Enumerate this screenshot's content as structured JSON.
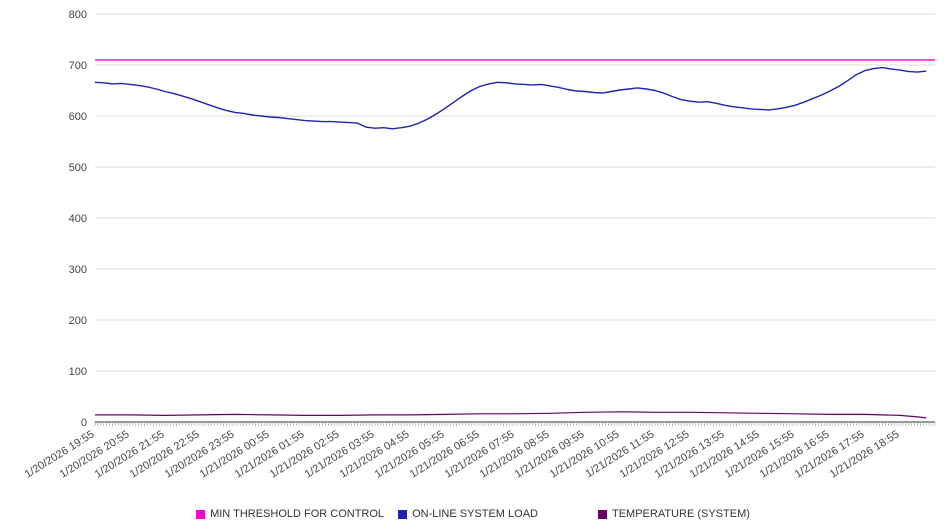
{
  "chart_data": {
    "type": "line",
    "title": "",
    "xlabel": "",
    "ylabel": "",
    "ylim": [
      0,
      800
    ],
    "y_ticks": [
      0,
      100,
      200,
      300,
      400,
      500,
      600,
      700,
      800
    ],
    "grid": "horizontal",
    "legend_position": "bottom-center",
    "x_unit": "minutes offset from 1/20/2026 19:55",
    "x_range_minutes": [
      0,
      1440
    ],
    "x_label_interval_minutes": 60,
    "x_minor_tick_minutes": 5,
    "x_labels": [
      "1/20/2026 19:55",
      "1/20/2026 20:55",
      "1/20/2026 21:55",
      "1/20/2026 22:55",
      "1/20/2026 23:55",
      "1/21/2026 00:55",
      "1/21/2026 01:55",
      "1/21/2026 02:55",
      "1/21/2026 03:55",
      "1/21/2026 04:55",
      "1/21/2026 05:55",
      "1/21/2026 06:55",
      "1/21/2026 07:55",
      "1/21/2026 08:55",
      "1/21/2026 09:55",
      "1/21/2026 10:55",
      "1/21/2026 11:55",
      "1/21/2026 12:55",
      "1/21/2026 13:55",
      "1/21/2026 14:55",
      "1/21/2026 15:55",
      "1/21/2026 16:55",
      "1/21/2026 17:55",
      "1/21/2026 18:55"
    ],
    "series": [
      {
        "name": "MIN THRESHOLD FOR CONTROL",
        "color": "#ff00cc",
        "width": 1.4,
        "points": [
          [
            0,
            710
          ],
          [
            1440,
            710
          ]
        ]
      },
      {
        "name": "ON-LINE SYSTEM LOAD",
        "color": "#2222b2",
        "width": 1.4,
        "points": [
          [
            0,
            666
          ],
          [
            15,
            665
          ],
          [
            30,
            663
          ],
          [
            45,
            664
          ],
          [
            60,
            662
          ],
          [
            75,
            660
          ],
          [
            90,
            657
          ],
          [
            105,
            653
          ],
          [
            120,
            648
          ],
          [
            135,
            644
          ],
          [
            150,
            639
          ],
          [
            165,
            634
          ],
          [
            180,
            628
          ],
          [
            195,
            622
          ],
          [
            210,
            616
          ],
          [
            225,
            611
          ],
          [
            240,
            607
          ],
          [
            255,
            605
          ],
          [
            270,
            602
          ],
          [
            285,
            600
          ],
          [
            300,
            598
          ],
          [
            315,
            597
          ],
          [
            330,
            595
          ],
          [
            345,
            593
          ],
          [
            360,
            591
          ],
          [
            375,
            590
          ],
          [
            390,
            589
          ],
          [
            405,
            589
          ],
          [
            420,
            588
          ],
          [
            435,
            587
          ],
          [
            450,
            586
          ],
          [
            465,
            578
          ],
          [
            480,
            576
          ],
          [
            495,
            577
          ],
          [
            510,
            575
          ],
          [
            525,
            577
          ],
          [
            540,
            580
          ],
          [
            555,
            586
          ],
          [
            570,
            594
          ],
          [
            585,
            604
          ],
          [
            600,
            615
          ],
          [
            615,
            627
          ],
          [
            630,
            639
          ],
          [
            645,
            650
          ],
          [
            660,
            658
          ],
          [
            675,
            663
          ],
          [
            690,
            666
          ],
          [
            705,
            665
          ],
          [
            720,
            663
          ],
          [
            735,
            662
          ],
          [
            750,
            661
          ],
          [
            765,
            662
          ],
          [
            780,
            659
          ],
          [
            795,
            656
          ],
          [
            810,
            652
          ],
          [
            825,
            649
          ],
          [
            840,
            648
          ],
          [
            855,
            646
          ],
          [
            870,
            645
          ],
          [
            885,
            648
          ],
          [
            900,
            651
          ],
          [
            915,
            653
          ],
          [
            930,
            655
          ],
          [
            945,
            653
          ],
          [
            960,
            650
          ],
          [
            975,
            645
          ],
          [
            990,
            638
          ],
          [
            1005,
            632
          ],
          [
            1020,
            629
          ],
          [
            1035,
            627
          ],
          [
            1050,
            628
          ],
          [
            1065,
            625
          ],
          [
            1080,
            621
          ],
          [
            1095,
            618
          ],
          [
            1110,
            616
          ],
          [
            1125,
            614
          ],
          [
            1140,
            613
          ],
          [
            1155,
            612
          ],
          [
            1170,
            614
          ],
          [
            1185,
            617
          ],
          [
            1200,
            621
          ],
          [
            1215,
            627
          ],
          [
            1230,
            634
          ],
          [
            1245,
            641
          ],
          [
            1260,
            649
          ],
          [
            1275,
            658
          ],
          [
            1290,
            669
          ],
          [
            1305,
            681
          ],
          [
            1320,
            689
          ],
          [
            1335,
            693
          ],
          [
            1350,
            695
          ],
          [
            1365,
            692
          ],
          [
            1380,
            690
          ],
          [
            1395,
            687
          ],
          [
            1410,
            686
          ],
          [
            1425,
            688
          ]
        ]
      },
      {
        "name": "TEMPERATURE (SYSTEM)",
        "color": "#660066",
        "width": 1.2,
        "points": [
          [
            0,
            14
          ],
          [
            60,
            14
          ],
          [
            120,
            13
          ],
          [
            180,
            14
          ],
          [
            240,
            15
          ],
          [
            300,
            14
          ],
          [
            360,
            13
          ],
          [
            420,
            13
          ],
          [
            480,
            14
          ],
          [
            540,
            14
          ],
          [
            600,
            15
          ],
          [
            660,
            16
          ],
          [
            720,
            16
          ],
          [
            780,
            17
          ],
          [
            840,
            19
          ],
          [
            900,
            20
          ],
          [
            960,
            19
          ],
          [
            1020,
            19
          ],
          [
            1080,
            18
          ],
          [
            1140,
            17
          ],
          [
            1200,
            16
          ],
          [
            1260,
            15
          ],
          [
            1320,
            15
          ],
          [
            1380,
            13
          ],
          [
            1410,
            10
          ],
          [
            1425,
            8
          ]
        ]
      }
    ]
  }
}
